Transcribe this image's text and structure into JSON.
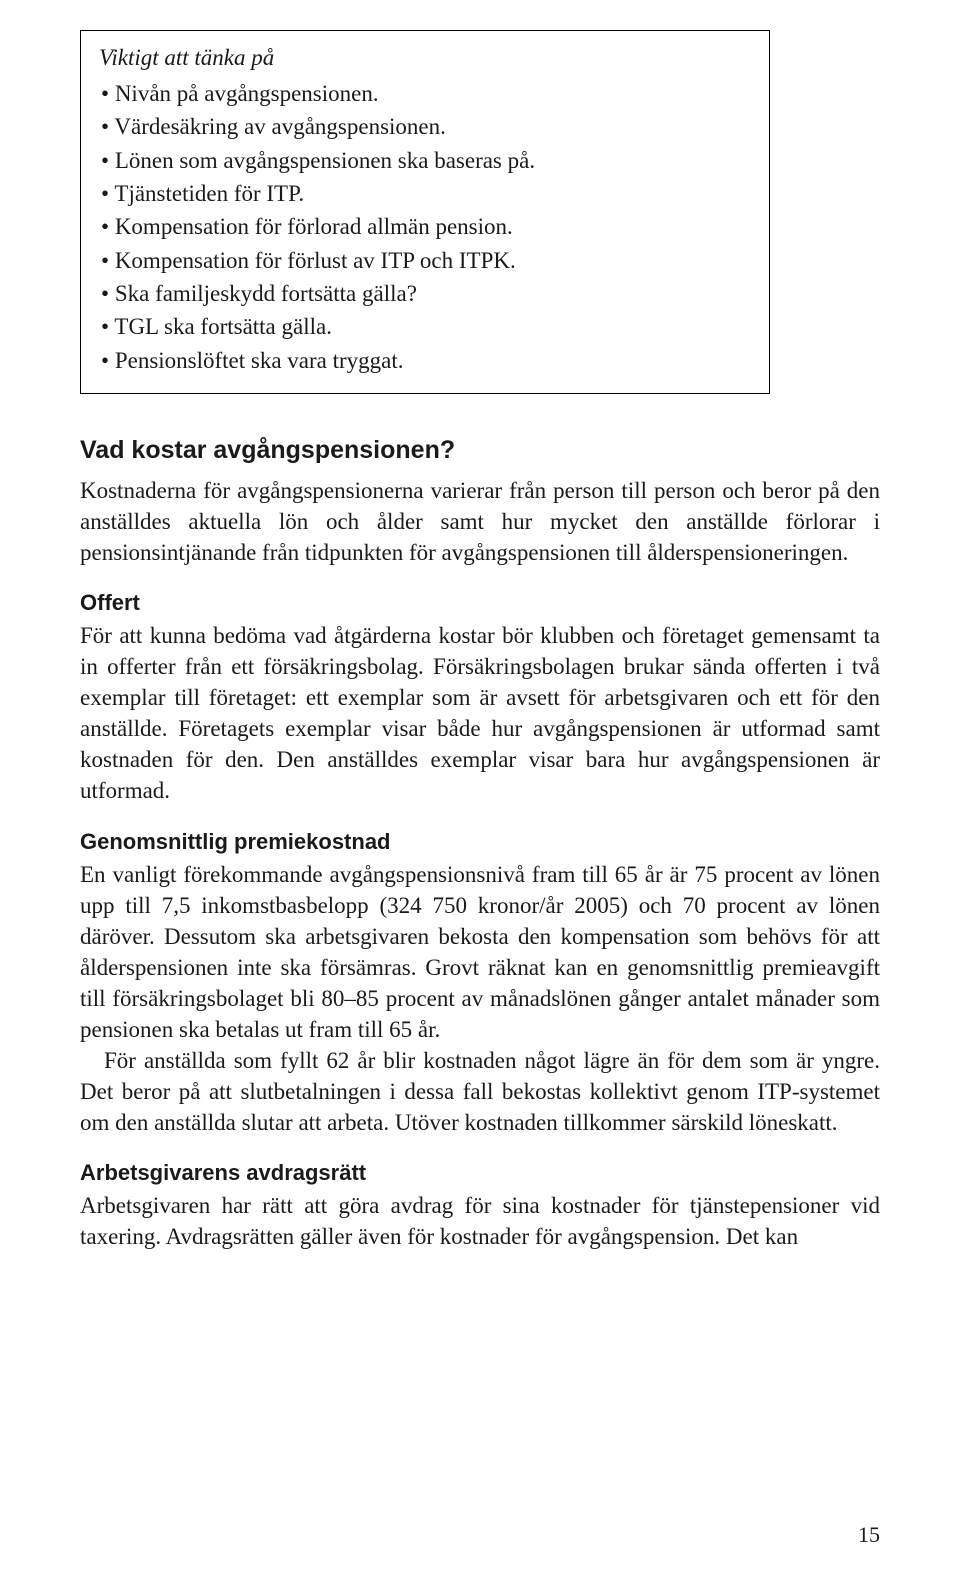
{
  "callout": {
    "title": "Viktigt att tänka på",
    "items": [
      "Nivån på avgångspensionen.",
      "Värdesäkring av avgångspensionen.",
      "Lönen som avgångspensionen ska baseras på.",
      "Tjänstetiden för ITP.",
      "Kompensation för förlorad allmän pension.",
      "Kompensation för förlust av ITP och ITPK.",
      "Ska familjeskydd fortsätta gälla?",
      "TGL ska fortsätta gälla.",
      "Pensionslöftet ska vara tryggat."
    ]
  },
  "section1": {
    "heading": "Vad kostar avgångspensionen?",
    "p1": "Kostnaderna för avgångspensionerna varierar från person till person och beror på den anställdes aktuella lön och ålder samt hur mycket den anställde förlorar i pensionsintjänande från tidpunkten för avgångspensionen till ålderspensioneringen."
  },
  "section2": {
    "heading": "Offert",
    "p1": "För att kunna bedöma vad åtgärderna kostar bör klubben och företaget gemensamt ta in offerter från ett försäkringsbolag. Försäkringsbolagen brukar sända offerten i två exemplar till företaget: ett exemplar som är avsett för arbetsgivaren och ett för den anställde. Företagets exemplar visar både hur avgångspensionen är utformad samt kostnaden för den. Den anställdes exemplar visar bara hur avgångspensionen är utformad."
  },
  "section3": {
    "heading": "Genomsnittlig premiekostnad",
    "p1": "En vanligt förekommande avgångspensionsnivå fram till 65 år är 75 procent av lönen upp till 7,5 inkomstbasbelopp (324 750 kronor/år 2005) och 70 procent av lönen däröver. Dessutom ska arbetsgivaren bekosta den kompensation som behövs för att ålderspensionen inte ska försämras. Grovt räknat kan en genomsnittlig premieavgift till försäkringsbolaget bli 80–85 procent av månadslönen gånger antalet månader som pensionen ska betalas ut fram till 65 år.",
    "p2": "För anställda som fyllt 62 år blir kostnaden något lägre än för dem som är yngre. Det beror på att slutbetalningen i dessa fall bekostas kollektivt genom ITP-systemet om den anställda slutar att arbeta. Utöver kostnaden tillkommer särskild löneskatt."
  },
  "section4": {
    "heading": "Arbetsgivarens avdragsrätt",
    "p1": "Arbetsgivaren har rätt att göra avdrag för sina kostnader för tjänstepensioner vid taxering. Avdragsrätten gäller även för kostnader för avgångspension. Det kan"
  },
  "page_number": "15"
}
